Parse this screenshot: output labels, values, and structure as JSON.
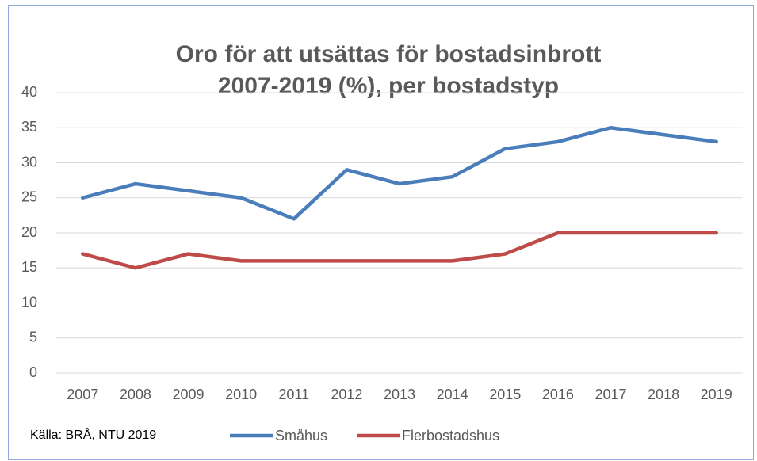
{
  "chart_data": {
    "type": "line",
    "title": [
      "Oro för att utsättas för bostadsinbrott",
      "2007-2019 (%), per bostadstyp"
    ],
    "annotation": "Källa: BRÅ, NTU 2019",
    "categories": [
      "2007",
      "2008",
      "2009",
      "2010",
      "2011",
      "2012",
      "2013",
      "2014",
      "2015",
      "2016",
      "2017",
      "2018",
      "2019"
    ],
    "series": [
      {
        "name": "Småhus",
        "color": "#4a7ebb",
        "values": [
          25,
          27,
          26,
          25,
          22,
          29,
          27,
          28,
          32,
          33,
          35,
          34,
          33
        ]
      },
      {
        "name": "Flerbostadshus",
        "color": "#be4b48",
        "values": [
          17,
          15,
          17,
          16,
          16,
          16,
          16,
          16,
          17,
          20,
          20,
          20,
          20
        ]
      }
    ],
    "ylim": [
      0,
      40
    ],
    "yticks": [
      0,
      5,
      10,
      15,
      20,
      25,
      30,
      35,
      40
    ],
    "grid": true,
    "legend": "bottom"
  }
}
